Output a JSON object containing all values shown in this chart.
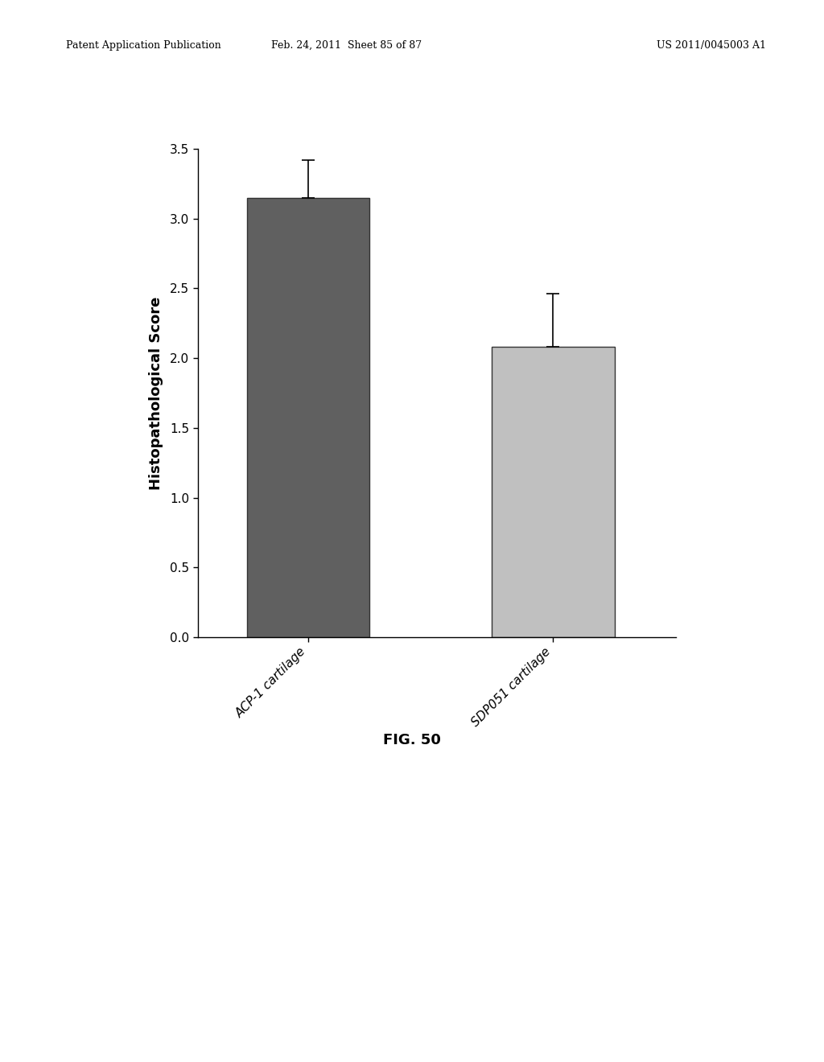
{
  "categories": [
    "ACP-1 cartilage",
    "SDP051 cartilage"
  ],
  "values": [
    3.15,
    2.08
  ],
  "errors_upper": [
    0.27,
    0.38
  ],
  "errors_lower": [
    0.0,
    0.0
  ],
  "bar_colors": [
    "#606060",
    "#c0c0c0"
  ],
  "bar_edge_colors": [
    "#333333",
    "#333333"
  ],
  "ylabel": "Histopathological Score",
  "ylim": [
    0.0,
    3.5
  ],
  "yticks": [
    0.0,
    0.5,
    1.0,
    1.5,
    2.0,
    2.5,
    3.0,
    3.5
  ],
  "ytick_labels": [
    "0.0",
    "0.5",
    "1.0",
    "1.5",
    "2.0",
    "2.5",
    "3.0",
    "3.5"
  ],
  "fig_caption": "FIG. 50",
  "header_left": "Patent Application Publication",
  "header_mid": "Feb. 24, 2011  Sheet 85 of 87",
  "header_right": "US 2011/0045003 A1",
  "background_color": "#ffffff",
  "bar_width": 0.5,
  "error_capsize": 6,
  "error_linewidth": 1.2,
  "ylabel_fontsize": 13,
  "tick_fontsize": 11,
  "caption_fontsize": 13,
  "header_fontsize": 9,
  "x_positions": [
    0.5,
    1.5
  ],
  "xlim": [
    0.05,
    2.0
  ]
}
